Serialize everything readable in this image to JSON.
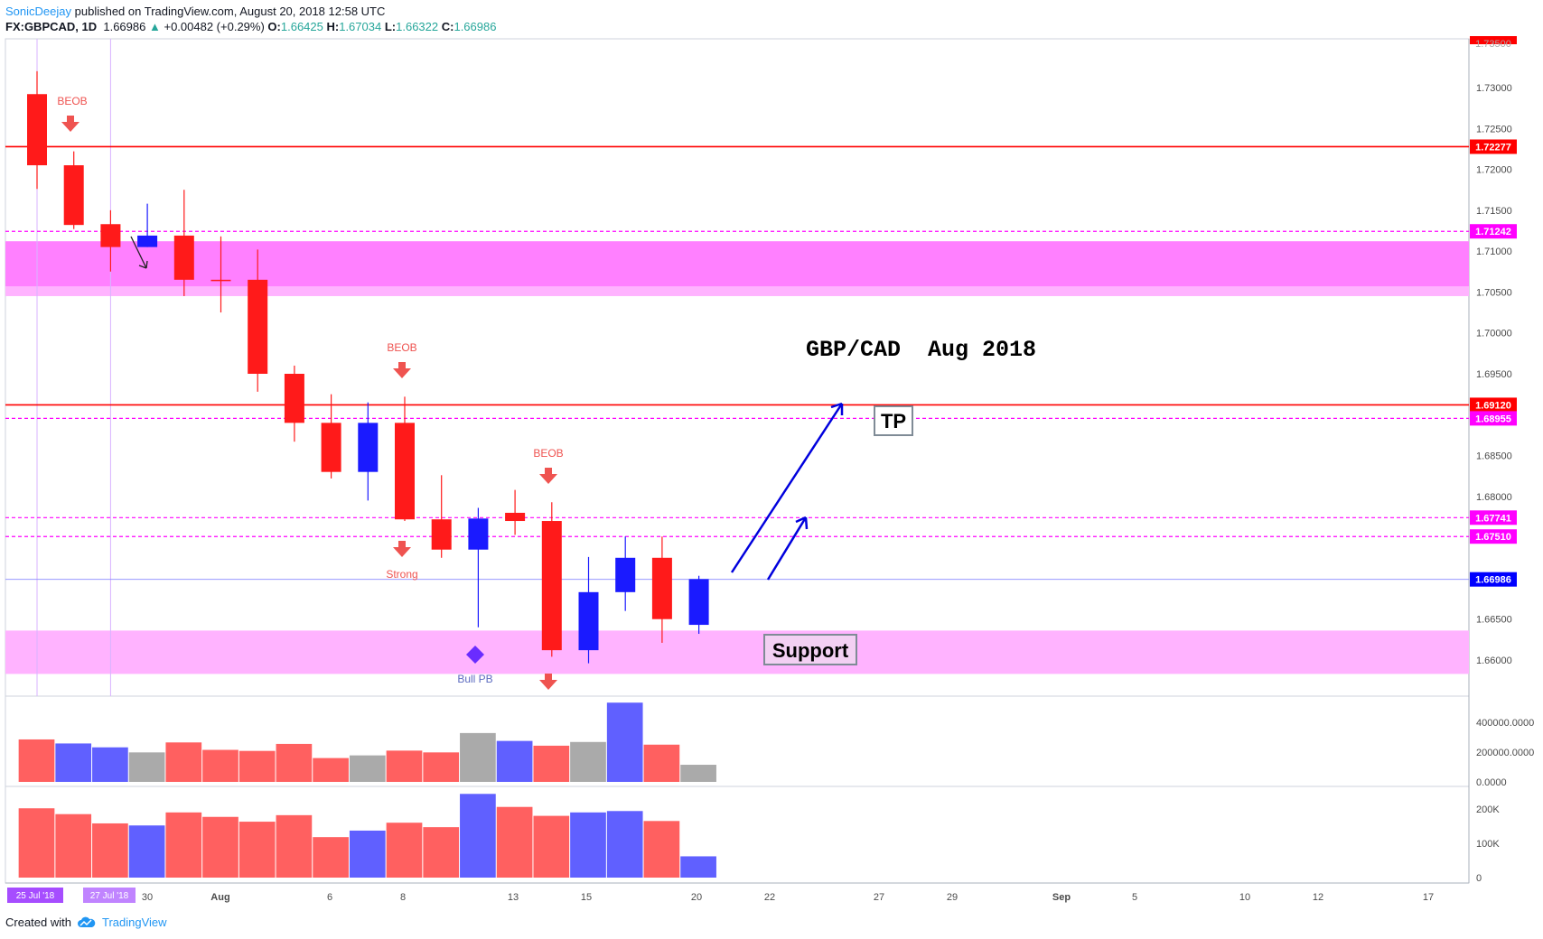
{
  "header": {
    "author": "SonicDeejay",
    "published": "published on TradingView.com, August 20, 2018 12:58 UTC",
    "symbol": "FX:GBPCAD, 1D",
    "last": "1.66986",
    "change_arrow": "▲",
    "change": "+0.00482 (+0.29%)",
    "open_label": "O:",
    "open": "1.66425",
    "high_label": "H:",
    "high": "1.67034",
    "low_label": "L:",
    "low": "1.66322",
    "close_label": "C:",
    "close": "1.66986"
  },
  "footer": {
    "created_with": "Created with",
    "brand": "TradingView",
    "logo_icon": "tradingview-cloud-icon"
  },
  "colors": {
    "up": "#1a1aff",
    "down": "#ff1a1a",
    "vol_up": "#6060ff",
    "vol_down": "#ff6060",
    "vol_neutral": "#aaaaaa",
    "pink": "#ff80ff",
    "pink_light": "#ffb3ff",
    "magenta": "#ff00ff",
    "red_line": "#ff0000",
    "arrow_blue": "#0000dd"
  },
  "annotations": {
    "title": "GBP/CAD  Aug 2018",
    "tp": "TP",
    "support": "Support",
    "beob1": "BEOB",
    "beob2": "BEOB",
    "beob3": "BEOB",
    "strong": "Strong",
    "bull_pb": "Bull PB"
  },
  "chart_data": {
    "type": "candlestick",
    "symbol": "FX:GBPCAD",
    "timeframe": "1D",
    "x_ticks": [
      "30",
      "Aug",
      "6",
      "8",
      "13",
      "15",
      "20",
      "22",
      "27",
      "29",
      "Sep",
      "5",
      "10",
      "12",
      "17"
    ],
    "x_date_badges": [
      "25 Jul '18",
      "27 Jul '18"
    ],
    "y_ticks": [
      "1.73000",
      "1.72500",
      "1.72000",
      "1.71500",
      "1.71000",
      "1.70500",
      "1.70000",
      "1.69500",
      "1.69000",
      "1.68500",
      "1.68000",
      "1.67500",
      "1.67000",
      "1.66500",
      "1.66000"
    ],
    "y_range": [
      1.658,
      1.736
    ],
    "candles": [
      {
        "o": 1.7292,
        "h": 1.732,
        "l": 1.7176,
        "c": 1.7205
      },
      {
        "o": 1.7205,
        "h": 1.7222,
        "l": 1.7127,
        "c": 1.7132
      },
      {
        "o": 1.7133,
        "h": 1.715,
        "l": 1.7075,
        "c": 1.7105
      },
      {
        "o": 1.7105,
        "h": 1.7158,
        "l": 1.7105,
        "c": 1.7119
      },
      {
        "o": 1.7119,
        "h": 1.7175,
        "l": 1.7045,
        "c": 1.7065
      },
      {
        "o": 1.7065,
        "h": 1.7118,
        "l": 1.7025,
        "c": 1.7065
      },
      {
        "o": 1.7065,
        "h": 1.7102,
        "l": 1.6928,
        "c": 1.695
      },
      {
        "o": 1.695,
        "h": 1.696,
        "l": 1.6867,
        "c": 1.689
      },
      {
        "o": 1.689,
        "h": 1.6925,
        "l": 1.6822,
        "c": 1.683
      },
      {
        "o": 1.683,
        "h": 1.6915,
        "l": 1.6795,
        "c": 1.689
      },
      {
        "o": 1.689,
        "h": 1.6922,
        "l": 1.677,
        "c": 1.6772
      },
      {
        "o": 1.6772,
        "h": 1.6826,
        "l": 1.6725,
        "c": 1.6735
      },
      {
        "o": 1.6735,
        "h": 1.6786,
        "l": 1.664,
        "c": 1.6773
      },
      {
        "o": 1.678,
        "h": 1.6808,
        "l": 1.6753,
        "c": 1.677
      },
      {
        "o": 1.677,
        "h": 1.6793,
        "l": 1.6604,
        "c": 1.6612
      },
      {
        "o": 1.6612,
        "h": 1.6726,
        "l": 1.6596,
        "c": 1.6683
      },
      {
        "o": 1.6683,
        "h": 1.6751,
        "l": 1.666,
        "c": 1.6725
      },
      {
        "o": 1.6725,
        "h": 1.6751,
        "l": 1.6621,
        "c": 1.665
      },
      {
        "o": 1.6643,
        "h": 1.6703,
        "l": 1.6632,
        "c": 1.6699
      }
    ],
    "horizontal_lines": [
      {
        "price": 1.72277,
        "label": "1.72277",
        "style": "solid",
        "color": "#ff0000"
      },
      {
        "price": 1.6912,
        "label": "1.69120",
        "style": "solid",
        "color": "#ff0000"
      },
      {
        "price": 1.71242,
        "label": "1.71242",
        "style": "dashed",
        "color": "#ff00ff"
      },
      {
        "price": 1.68955,
        "label": "1.68955",
        "style": "dashed",
        "color": "#ff00ff"
      },
      {
        "price": 1.67741,
        "label": "1.67741",
        "style": "dashed",
        "color": "#ff00ff"
      },
      {
        "price": 1.6751,
        "label": "1.67510",
        "style": "dashed",
        "color": "#ff00ff"
      },
      {
        "price": 1.66986,
        "label": "1.66986",
        "style": "thin",
        "color": "#0000ff"
      }
    ],
    "top_clipped_label": "1.73500",
    "zones": [
      {
        "top": 1.7112,
        "bottom": 1.7045,
        "inner_bottom": 1.7057,
        "color": "#ff80ff"
      },
      {
        "top": 1.6636,
        "bottom": 1.6583,
        "color": "#ffb3ff"
      }
    ],
    "volume_ticks": [
      "400000.0000",
      "200000.0000",
      "0.0000"
    ],
    "volume_max": 530000,
    "volume": [
      {
        "v": 285000,
        "k": "down"
      },
      {
        "v": 258000,
        "k": "up"
      },
      {
        "v": 232000,
        "k": "up"
      },
      {
        "v": 198000,
        "k": "neutral"
      },
      {
        "v": 265000,
        "k": "down"
      },
      {
        "v": 215000,
        "k": "down"
      },
      {
        "v": 208000,
        "k": "down"
      },
      {
        "v": 255000,
        "k": "down"
      },
      {
        "v": 160000,
        "k": "down"
      },
      {
        "v": 178000,
        "k": "neutral"
      },
      {
        "v": 210000,
        "k": "down"
      },
      {
        "v": 198000,
        "k": "down"
      },
      {
        "v": 328000,
        "k": "neutral"
      },
      {
        "v": 275000,
        "k": "up"
      },
      {
        "v": 243000,
        "k": "down"
      },
      {
        "v": 268000,
        "k": "neutral"
      },
      {
        "v": 532000,
        "k": "up"
      },
      {
        "v": 250000,
        "k": "down"
      },
      {
        "v": 115000,
        "k": "neutral"
      }
    ],
    "osc_ticks": [
      "200K",
      "100K",
      "0"
    ],
    "osc_max": 254000,
    "oscillator": [
      {
        "v": 202000,
        "k": "down"
      },
      {
        "v": 185000,
        "k": "down"
      },
      {
        "v": 158000,
        "k": "down"
      },
      {
        "v": 152000,
        "k": "up"
      },
      {
        "v": 190000,
        "k": "down"
      },
      {
        "v": 177000,
        "k": "down"
      },
      {
        "v": 163000,
        "k": "down"
      },
      {
        "v": 182000,
        "k": "down"
      },
      {
        "v": 118000,
        "k": "down"
      },
      {
        "v": 137000,
        "k": "up"
      },
      {
        "v": 160000,
        "k": "down"
      },
      {
        "v": 147000,
        "k": "down"
      },
      {
        "v": 244000,
        "k": "up"
      },
      {
        "v": 206000,
        "k": "down"
      },
      {
        "v": 180000,
        "k": "down"
      },
      {
        "v": 190000,
        "k": "up"
      },
      {
        "v": 194000,
        "k": "up"
      },
      {
        "v": 165000,
        "k": "down"
      },
      {
        "v": 62000,
        "k": "up"
      }
    ]
  }
}
